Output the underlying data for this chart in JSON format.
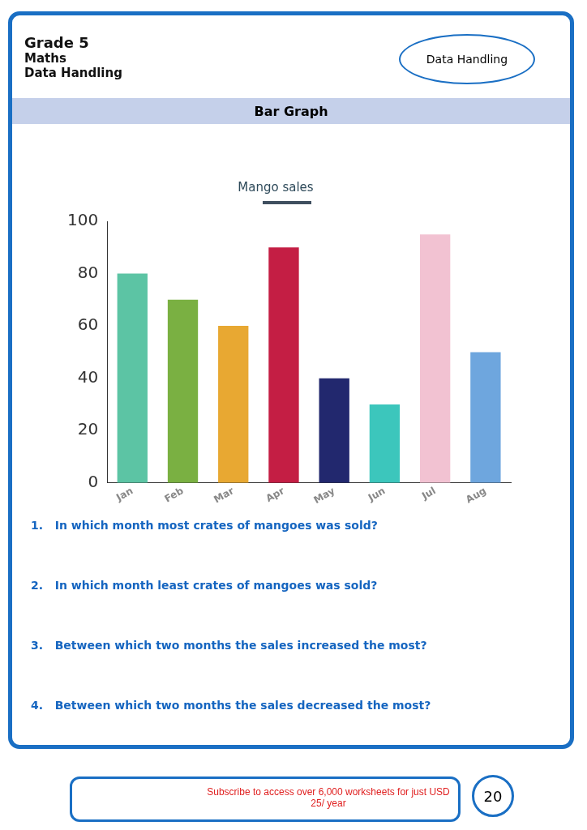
{
  "chart_data": {
    "type": "bar",
    "subtitle": "Mango sales",
    "categories": [
      "Jan",
      "Feb",
      "Mar",
      "Apr",
      "May",
      "Jun",
      "Jul",
      "Aug"
    ],
    "values": [
      80,
      70,
      60,
      90,
      40,
      30,
      95,
      50
    ],
    "colors": [
      "#5cc4a4",
      "#7ab042",
      "#e8a832",
      "#c41e44",
      "#22286e",
      "#3cc6bc",
      "#f2c2d2",
      "#6ea6de"
    ],
    "ylim": [
      0,
      100
    ],
    "yticks": [
      0,
      20,
      40,
      60,
      80,
      100
    ],
    "grid": false,
    "legend": false,
    "annotations": [
      "Grade 5",
      "Maths",
      "Data Handling",
      "Data Handling",
      "Bar Graph",
      "1.   In which month most crates of mangoes was sold?",
      "2.   In which month least crates of mangoes was sold?",
      "3.   Between which two months the sales increased the most?",
      "4.   Between which two months the sales decreased the most?",
      "Subscribe to access over 6,000 worksheets for just USD 25/ year",
      "20"
    ]
  }
}
